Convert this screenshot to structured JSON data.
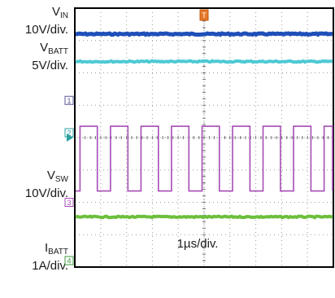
{
  "chart_data": {
    "type": "line",
    "annotation": "1µs/div.",
    "trigger_marker": "T",
    "channels": [
      {
        "number": "1",
        "name_main": "V",
        "name_sub": "IN",
        "scale": "10V/div.",
        "color": "#1f4fb8",
        "marker_color": "#5a5a9a",
        "level_div": 7.2
      },
      {
        "number": "2",
        "name_main": "V",
        "name_sub": "BATT",
        "scale": "5V/div.",
        "color": "#4ec9d4",
        "marker_color": "#2aa0a0",
        "level_div": 6.35
      },
      {
        "number": "3",
        "name_main": "V",
        "name_sub": "SW",
        "scale": "10V/div.",
        "color": "#a64cb5",
        "marker_color": "#a64cb5",
        "high_div": 4.35,
        "low_div": 2.35,
        "period_div": 1.18,
        "first_high_start_div": 0.2,
        "duty": 0.57
      },
      {
        "number": "4",
        "name_main": "I",
        "name_sub": "BATT",
        "scale": "1A/div.",
        "color": "#6cbf3c",
        "marker_color": "#3c9c3c",
        "level_div": 1.55
      }
    ],
    "grid": {
      "x_divisions": 10,
      "y_divisions": 8
    }
  }
}
